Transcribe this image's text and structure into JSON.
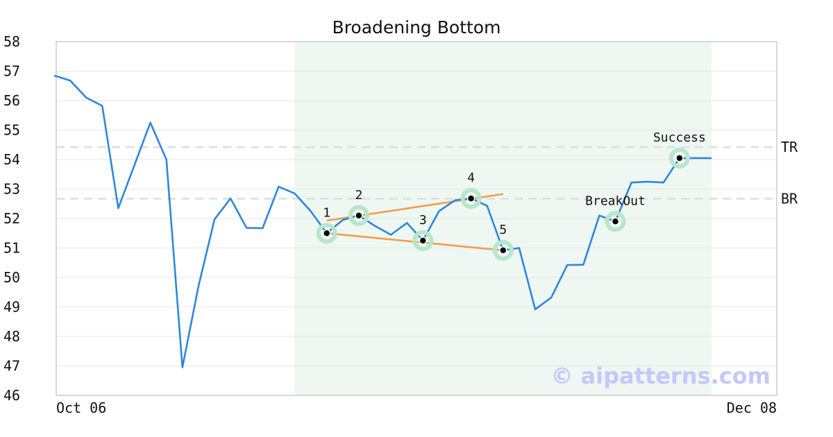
{
  "chart_data": {
    "type": "line",
    "title": "Broadening Bottom",
    "x_start_label": "Oct 06",
    "x_end_label": "Dec 08",
    "ylim": [
      46,
      58
    ],
    "yticks": [
      46,
      47,
      48,
      49,
      50,
      51,
      52,
      53,
      54,
      55,
      56,
      57,
      58
    ],
    "grid": true,
    "series": [
      {
        "values": [
          56.85,
          56.68,
          56.1,
          55.82,
          52.35,
          53.8,
          55.25,
          54.0,
          46.95,
          49.7,
          51.97,
          52.68,
          51.68,
          51.67,
          53.08,
          52.85,
          52.25,
          51.5,
          51.95,
          52.1,
          51.75,
          51.45,
          51.85,
          51.25,
          52.25,
          52.62,
          52.68,
          52.43,
          50.92,
          51.0,
          48.92,
          49.32,
          50.42,
          50.43,
          52.1,
          51.9,
          53.22,
          53.25,
          53.22,
          54.05,
          54.05,
          54.05
        ]
      }
    ],
    "pattern_region": {
      "start_index": 15,
      "end_index": 41
    },
    "levels": [
      {
        "label": "TR",
        "value": 54.42
      },
      {
        "label": "BR",
        "value": 52.67
      }
    ],
    "trendlines": [
      {
        "from": [
          17,
          51.93
        ],
        "to": [
          28,
          52.83
        ]
      },
      {
        "from": [
          17,
          51.5
        ],
        "to": [
          28,
          50.92
        ]
      }
    ],
    "markers": [
      {
        "label": "1",
        "index": 17,
        "value": 51.5
      },
      {
        "label": "2",
        "index": 19,
        "value": 52.1
      },
      {
        "label": "3",
        "index": 23,
        "value": 51.25
      },
      {
        "label": "4",
        "index": 26,
        "value": 52.68
      },
      {
        "label": "5",
        "index": 28,
        "value": 50.92
      },
      {
        "label": "BreakOut",
        "index": 35,
        "value": 51.9
      },
      {
        "label": "Success",
        "index": 39,
        "value": 54.05
      }
    ],
    "colors": {
      "line": "#2e86de",
      "trendline": "#f39c4a",
      "region": "#eef7f2",
      "marker_halo": "#b8e6cc",
      "level_line": "#dddddd",
      "grid": "#e6e6e6",
      "frame": "#d8d8d8"
    }
  },
  "watermark": "© aipatterns.com"
}
